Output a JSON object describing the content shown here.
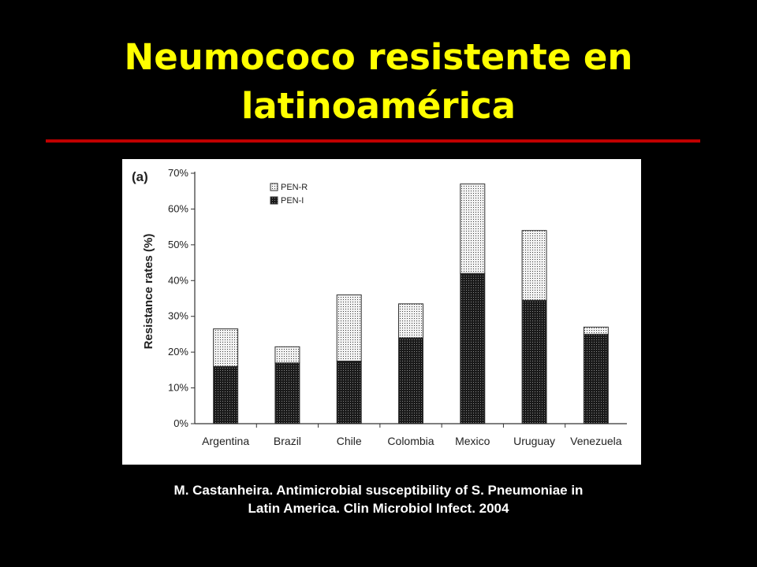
{
  "slide": {
    "background": "#000000",
    "title_lines": [
      "Neumococo resistente en",
      "latinoamérica"
    ],
    "title_color": "#ffff00",
    "rule_color": "#c00000",
    "citation_lines": [
      "M. Castanheira. Antimicrobial susceptibility of S. Pneumoniae in",
      "Latin America.  Clin Microbiol Infect. 2004"
    ]
  },
  "chart_data": {
    "type": "bar",
    "stacked": true,
    "panel_label": "(a)",
    "ylabel": "Resistance rates (%)",
    "xlabel": "",
    "ylim": [
      0,
      70
    ],
    "yticks": [
      "0%",
      "10%",
      "20%",
      "30%",
      "40%",
      "50%",
      "60%",
      "70%"
    ],
    "ytick_values": [
      0,
      10,
      20,
      30,
      40,
      50,
      60,
      70
    ],
    "categories": [
      "Argentina",
      "Brazil",
      "Chile",
      "Colombia",
      "Mexico",
      "Uruguay",
      "Venezuela"
    ],
    "series": [
      {
        "name": "PEN-I",
        "values": [
          16,
          17,
          17.5,
          24,
          42,
          34.5,
          25
        ],
        "pattern": "dark-dotted"
      },
      {
        "name": "PEN-R",
        "values": [
          10.5,
          4.5,
          18.5,
          9.5,
          25,
          19.5,
          2
        ],
        "pattern": "light-dotted"
      }
    ],
    "legend_order": [
      "PEN-R",
      "PEN-I"
    ],
    "legend_position": "top-left",
    "grid": false
  }
}
